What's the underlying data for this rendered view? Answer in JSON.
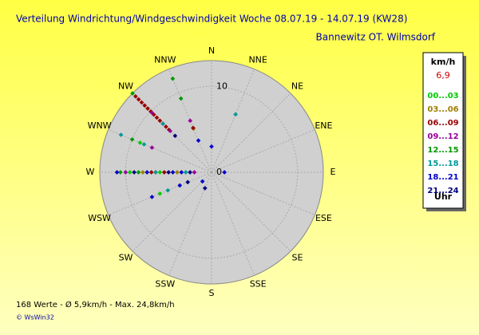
{
  "chart_data": {
    "type": "polar_scatter",
    "title": "Verteilung Windrichtung/Windgeschwindigkeit  Woche 08.07.19 - 14.07.19 (KW28)",
    "subtitle": "Bannewitz OT. Wilmsdorf",
    "directions": [
      "N",
      "NNE",
      "NE",
      "ENE",
      "E",
      "ESE",
      "SE",
      "SSE",
      "S",
      "SSW",
      "SW",
      "WSW",
      "W",
      "WNW",
      "NW",
      "NNW"
    ],
    "rlim": [
      0,
      13
    ],
    "rticks": [
      0,
      10
    ],
    "legend_title": "km/h",
    "current_value": "6,9",
    "legend_unit": "Uhr",
    "footer": "168 Werte  -  Ø 5,9km/h  -  Max. 24,8km/h",
    "copyright": "© WsWin32",
    "series": [
      {
        "name": "00...03",
        "color": "#00cc00",
        "angles": [
          270,
          270,
          315,
          247.5,
          292.5
        ],
        "speeds": [
          9.5,
          6.0,
          10.5,
          6.5,
          9.0
        ]
      },
      {
        "name": "03...06",
        "color": "#a08000",
        "angles": [
          270,
          270,
          315,
          337.5
        ],
        "speeds": [
          8.0,
          4.0,
          8.5,
          5.5
        ]
      },
      {
        "name": "06...09",
        "color": "#990000",
        "angles": [
          315,
          315,
          315,
          315,
          315,
          315,
          315,
          315,
          315,
          315,
          315,
          315,
          270,
          270,
          337.5
        ],
        "speeds": [
          12.5,
          12,
          11.5,
          11,
          10.5,
          10,
          9.5,
          9,
          8.5,
          8,
          7.5,
          7,
          7.0,
          5.5,
          5.6
        ]
      },
      {
        "name": "09...12",
        "color": "#990099",
        "angles": [
          315,
          315,
          337.5,
          270,
          270,
          270,
          292.5
        ],
        "speeds": [
          9.8,
          6.8,
          6.5,
          10.0,
          6.5,
          2.0,
          7.5
        ]
      },
      {
        "name": "12...15",
        "color": "#009900",
        "angles": [
          337.5,
          337.5,
          315,
          270,
          270,
          292.5
        ],
        "speeds": [
          11.8,
          9.3,
          13.0,
          10.6,
          8.5,
          10.0
        ]
      },
      {
        "name": "15...18",
        "color": "#009999",
        "angles": [
          22.5,
          292.5,
          292.5,
          270,
          270,
          315,
          247.5
        ],
        "speeds": [
          7.3,
          11.4,
          8.5,
          6.5,
          3.0,
          8.0,
          5.5
        ]
      },
      {
        "name": "18...21",
        "color": "#0000cc",
        "angles": [
          270,
          270,
          270,
          270,
          90,
          247.5,
          247.5,
          337.5,
          0,
          225
        ],
        "speeds": [
          11.0,
          7.5,
          4.5,
          3.5,
          1.5,
          7.5,
          4.0,
          4.0,
          3.0,
          1.5
        ]
      },
      {
        "name": "21...24",
        "color": "#000080",
        "angles": [
          270,
          270,
          270,
          315,
          247.5,
          202.5
        ],
        "speeds": [
          9.0,
          5.0,
          2.5,
          6.0,
          3.0,
          2.0
        ]
      }
    ]
  }
}
